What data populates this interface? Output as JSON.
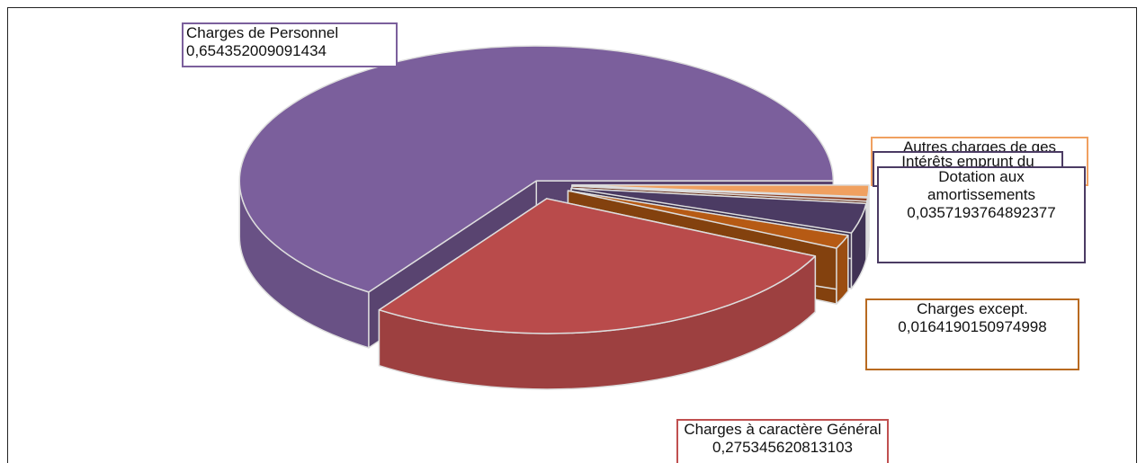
{
  "chart_data": {
    "type": "pie3d",
    "categories": [
      "Charges de Personnel",
      "Charges à caractère Général",
      "Charges except.",
      "Dotation aux amortissements",
      "Intérêts emprunt du",
      "Autres charges de ges"
    ],
    "values": [
      0.654352009091434,
      0.275345620813103,
      0.0164190150974998,
      0.0357193764892377,
      0.004,
      0.014
    ],
    "value_labels": [
      "0,654352009091434",
      "0,275345620813103",
      "0,0164190150974998",
      "0,0357193764892377",
      null,
      null
    ],
    "colors": [
      "#7b5f9c",
      "#b94b4b",
      "#b65a14",
      "#4b3b63",
      "#8e3f22",
      "#f0a060"
    ]
  }
}
